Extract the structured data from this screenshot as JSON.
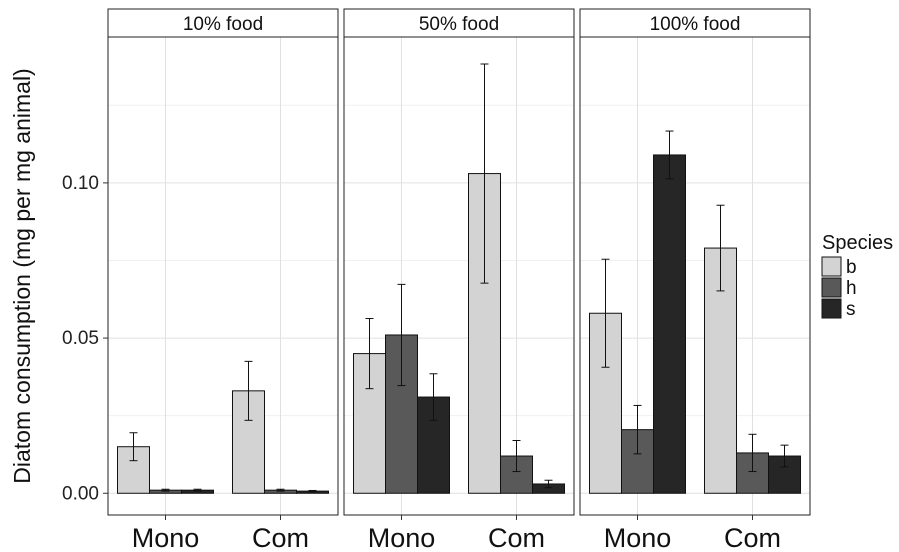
{
  "chart_data": {
    "type": "bar",
    "ylabel": "Diatom consumption (mg per mg animal)",
    "ylim": [
      -0.007,
      0.147
    ],
    "yticks": [
      0.0,
      0.05,
      0.1
    ],
    "yticklabels": [
      "0.00",
      "0.05",
      "0.10"
    ],
    "grid": true,
    "categories": [
      "Mono",
      "Com"
    ],
    "legend": {
      "title": "Species",
      "position": "right",
      "entries": [
        {
          "name": "b",
          "color": "#d3d3d3"
        },
        {
          "name": "h",
          "color": "#595959"
        },
        {
          "name": "s",
          "color": "#262626"
        }
      ]
    },
    "facets": [
      {
        "label": "10% food",
        "series": [
          {
            "name": "b",
            "values": [
              0.015,
              0.033
            ],
            "err": [
              0.0045,
              0.0095
            ]
          },
          {
            "name": "h",
            "values": [
              0.001,
              0.001
            ],
            "err": [
              0.0003,
              0.0003
            ]
          },
          {
            "name": "s",
            "values": [
              0.001,
              0.0007
            ],
            "err": [
              0.0003,
              0.0002
            ]
          }
        ]
      },
      {
        "label": "50% food",
        "series": [
          {
            "name": "b",
            "values": [
              0.045,
              0.103
            ],
            "err": [
              0.0113,
              0.0353
            ]
          },
          {
            "name": "h",
            "values": [
              0.051,
              0.012
            ],
            "err": [
              0.0163,
              0.005
            ]
          },
          {
            "name": "s",
            "values": [
              0.031,
              0.003
            ],
            "err": [
              0.0075,
              0.0012
            ]
          }
        ]
      },
      {
        "label": "100% food",
        "series": [
          {
            "name": "b",
            "values": [
              0.058,
              0.079
            ],
            "err": [
              0.0174,
              0.0138
            ]
          },
          {
            "name": "h",
            "values": [
              0.0205,
              0.013
            ],
            "err": [
              0.0078,
              0.006
            ]
          },
          {
            "name": "s",
            "values": [
              0.109,
              0.012
            ],
            "err": [
              0.0077,
              0.0035
            ]
          }
        ]
      }
    ]
  }
}
